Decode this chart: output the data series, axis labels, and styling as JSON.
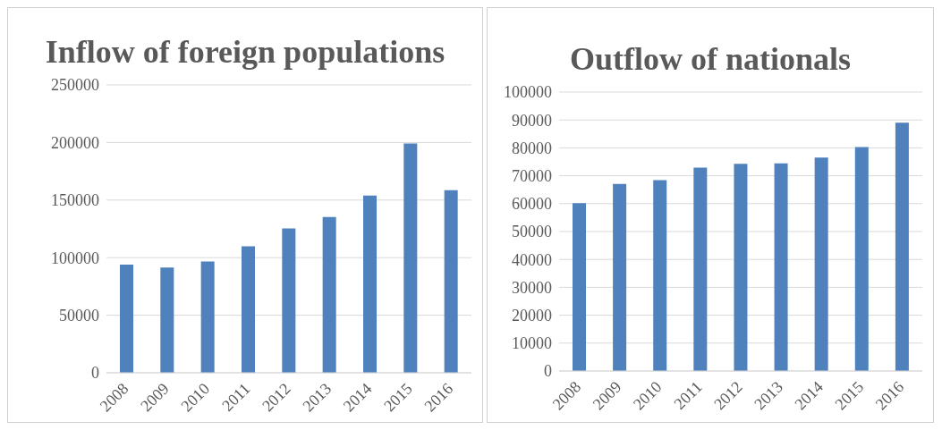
{
  "chart_data": [
    {
      "type": "bar",
      "title": "Inflow of foreign populations",
      "categories": [
        "2008",
        "2009",
        "2010",
        "2011",
        "2012",
        "2013",
        "2014",
        "2015",
        "2016"
      ],
      "values": [
        94000,
        91400,
        96600,
        109800,
        125300,
        135200,
        153900,
        199100,
        158500
      ],
      "color": "#4f81bd",
      "ylim": [
        0,
        250000
      ],
      "yticks": [
        0,
        50000,
        100000,
        150000,
        200000,
        250000
      ],
      "grid": "y"
    },
    {
      "type": "bar",
      "title": "Outflow of nationals",
      "categories": [
        "2008",
        "2009",
        "2010",
        "2011",
        "2012",
        "2013",
        "2014",
        "2015",
        "2016"
      ],
      "values": [
        60200,
        67100,
        68400,
        72900,
        74300,
        74400,
        76500,
        80300,
        89000
      ],
      "color": "#4f81bd",
      "ylim": [
        0,
        100000
      ],
      "yticks": [
        0,
        10000,
        20000,
        30000,
        40000,
        50000,
        60000,
        70000,
        80000,
        90000,
        100000
      ],
      "grid": "y"
    }
  ]
}
